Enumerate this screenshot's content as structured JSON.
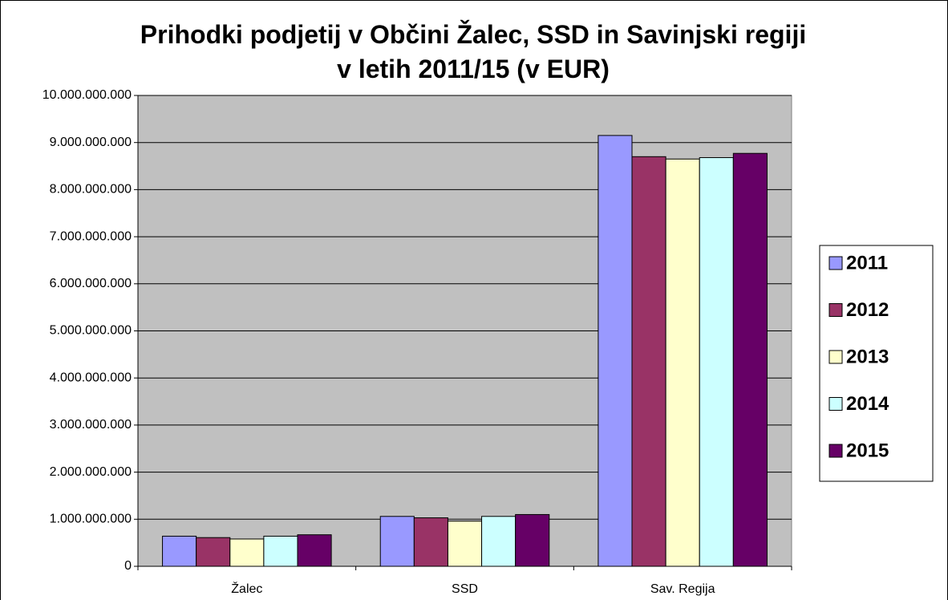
{
  "chart_data": {
    "type": "bar",
    "title": "Prihodki podjetij v Občini Žalec, SSD in Savinjski regiji v letih 2011/15 (v EUR)",
    "categories": [
      "Žalec",
      "SSD",
      "Sav. Regija"
    ],
    "series": [
      {
        "name": "2011",
        "color": "#9999ff",
        "values": [
          640000000,
          1060000000,
          9150000000
        ]
      },
      {
        "name": "2012",
        "color": "#993366",
        "values": [
          610000000,
          1030000000,
          8700000000
        ]
      },
      {
        "name": "2013",
        "color": "#ffffcc",
        "values": [
          580000000,
          960000000,
          8650000000
        ]
      },
      {
        "name": "2014",
        "color": "#ccffff",
        "values": [
          640000000,
          1060000000,
          8680000000
        ]
      },
      {
        "name": "2015",
        "color": "#660066",
        "values": [
          670000000,
          1100000000,
          8770000000
        ]
      }
    ],
    "ylim": [
      0,
      10000000000
    ],
    "yticks": [
      0,
      {
        "value": 1000000000,
        "label": "1.000.000.000"
      },
      {
        "value": 2000000000,
        "label": "2.000.000.000"
      },
      {
        "value": 3000000000,
        "label": "3.000.000.000"
      },
      {
        "value": 4000000000,
        "label": "4.000.000.000"
      },
      {
        "value": 5000000000,
        "label": "5.000.000.000"
      },
      {
        "value": 6000000000,
        "label": "6.000.000.000"
      },
      {
        "value": 7000000000,
        "label": "7.000.000.000"
      },
      {
        "value": 8000000000,
        "label": "8.000.000.000"
      },
      {
        "value": 9000000000,
        "label": "9.000.000.000"
      },
      {
        "value": 10000000000,
        "label": "10.000.000.000"
      }
    ],
    "grid": true,
    "legend": "right",
    "plot_background": "#c0c0c0"
  }
}
